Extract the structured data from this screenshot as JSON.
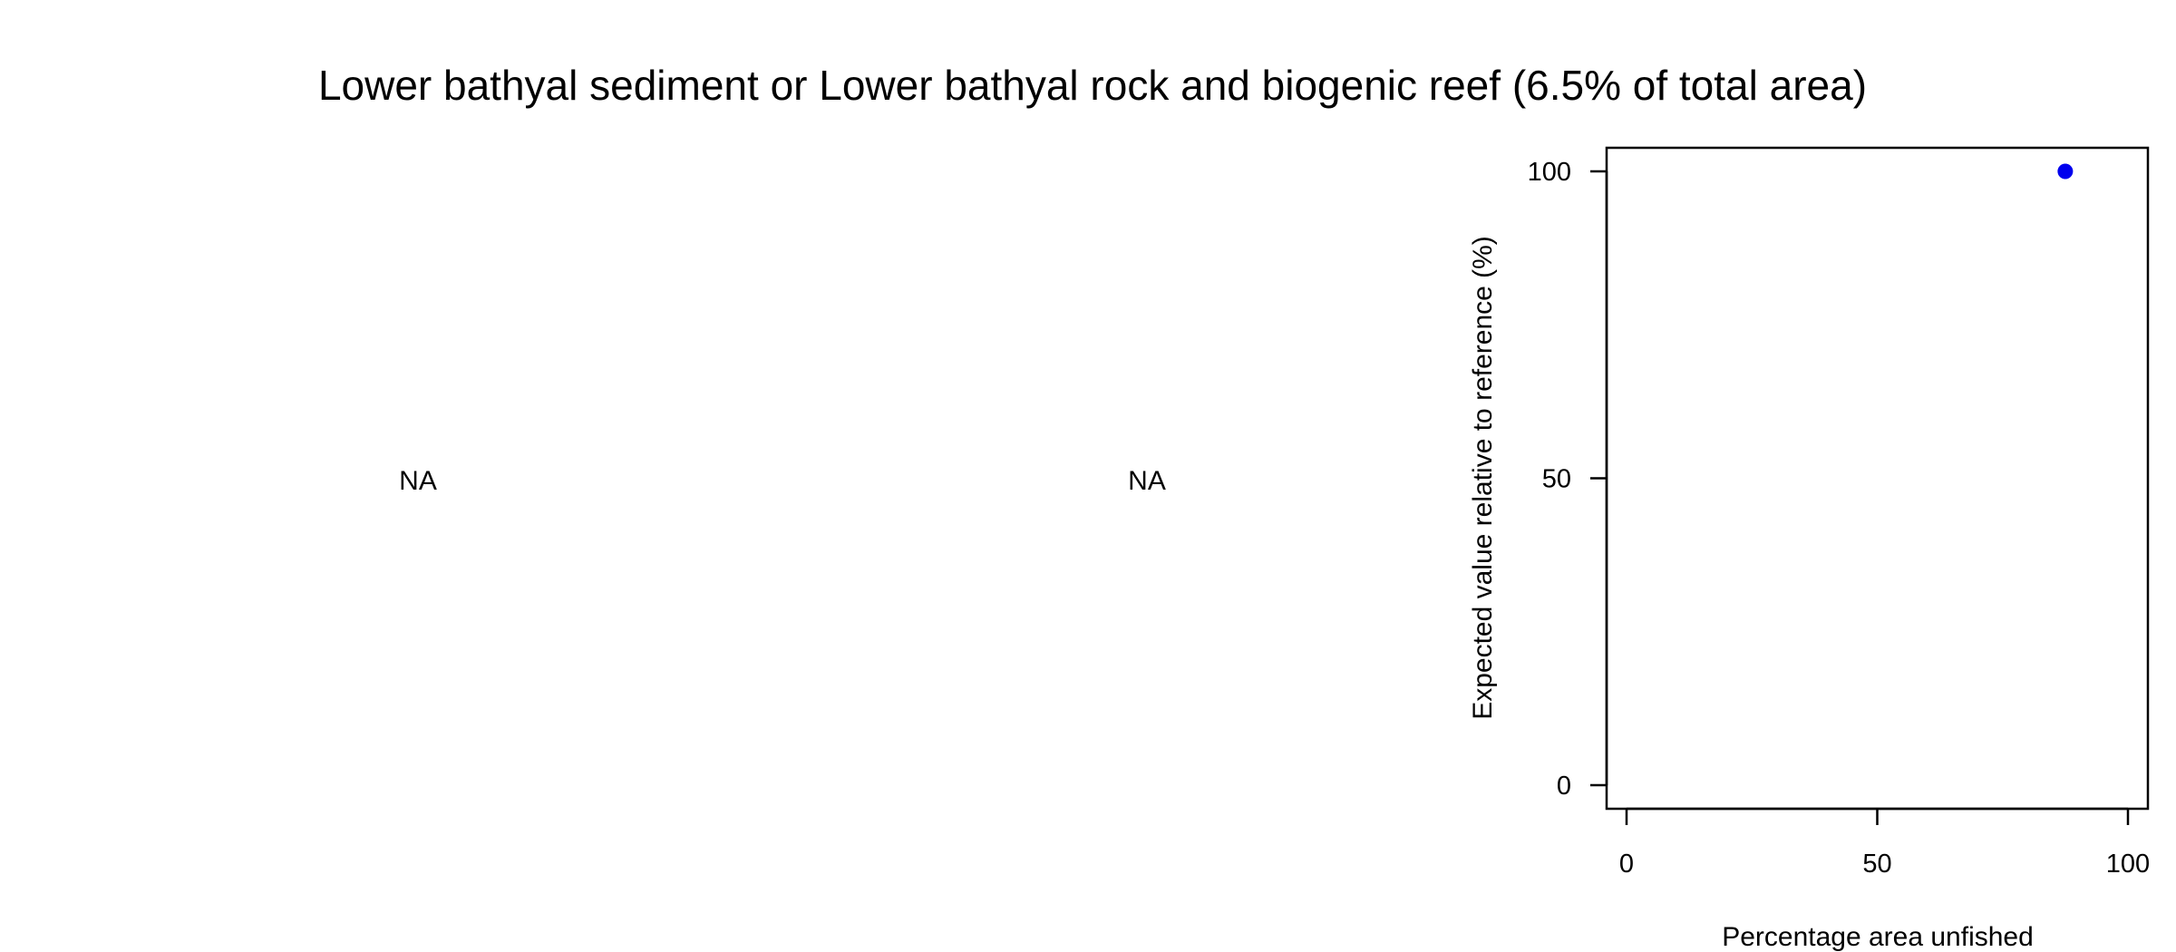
{
  "chart_data": {
    "title": "Lower bathyal sediment or Lower bathyal rock and biogenic reef (6.5% of total area)",
    "panels": [
      {
        "type": "empty",
        "placeholder": "NA"
      },
      {
        "type": "empty",
        "placeholder": "NA"
      },
      {
        "type": "scatter",
        "xlabel": "Percentage area unfished",
        "ylabel": "Expected value relative to reference (%)",
        "xlim": [
          0,
          100
        ],
        "ylim": [
          0,
          100
        ],
        "x_ticks": [
          0,
          50,
          100
        ],
        "y_ticks": [
          0,
          50,
          100
        ],
        "x_tick_labels": [
          "0",
          "50",
          "100"
        ],
        "y_tick_labels": [
          "0",
          "50",
          "100"
        ],
        "grid": false,
        "point_color": "#0000ee",
        "points": [
          {
            "x": 87.5,
            "y": 100
          }
        ]
      }
    ]
  }
}
